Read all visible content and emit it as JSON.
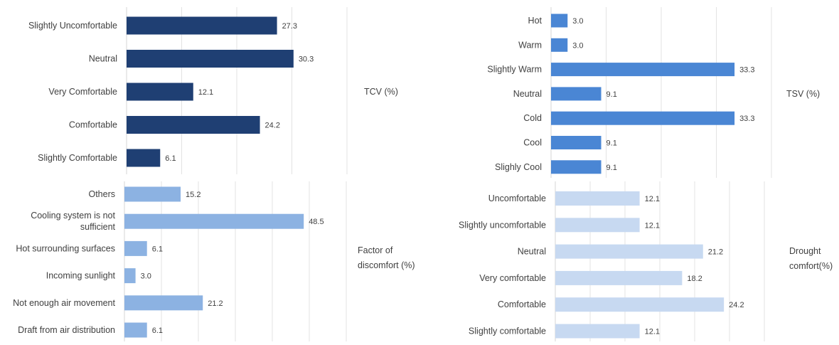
{
  "chart_data": [
    {
      "type": "bar",
      "orientation": "horizontal",
      "side_label": [
        "TCV (%)"
      ],
      "color": "#1f3f73",
      "categories": [
        "Slightly Uncomfortable",
        "Neutral",
        "Very Comfortable",
        "Comfortable",
        "Slightly Comfortable"
      ],
      "values": [
        27.3,
        30.3,
        12.1,
        24.2,
        6.1
      ],
      "value_labels": [
        "27.3",
        "30.3",
        "12.1",
        "24.2",
        "6.1"
      ],
      "xlim": [
        0,
        40
      ],
      "grid": true
    },
    {
      "type": "bar",
      "orientation": "horizontal",
      "side_label": [
        "TSV (%)"
      ],
      "color": "#4a86d4",
      "categories": [
        "Hot",
        "Warm",
        "Slightly Warm",
        "Neutral",
        "Cold",
        "Cool",
        "Slighly Cool"
      ],
      "values": [
        3.0,
        3.0,
        33.3,
        9.1,
        33.3,
        9.1,
        9.1
      ],
      "value_labels": [
        "3.0",
        "3.0",
        "33.3",
        "9.1",
        "33.3",
        "9.1",
        "9.1"
      ],
      "xlim": [
        0,
        40
      ],
      "grid": true
    },
    {
      "type": "bar",
      "orientation": "horizontal",
      "side_label": [
        "Factor of",
        "discomfort  (%)"
      ],
      "color": "#8cb2e2",
      "categories": [
        "Others",
        [
          "Cooling system is not",
          "sufficient"
        ],
        "Hot surrounding surfaces",
        "Incoming sunlight",
        "Not enough air movement",
        "Draft from air distribution"
      ],
      "values": [
        15.2,
        48.5,
        6.1,
        3.0,
        21.2,
        6.1
      ],
      "value_labels": [
        "15.2",
        "48.5",
        "6.1",
        "3.0",
        "21.2",
        "6.1"
      ],
      "xlim": [
        0,
        60
      ],
      "grid": true
    },
    {
      "type": "bar",
      "orientation": "horizontal",
      "side_label": [
        "Drought",
        "comfort(%)"
      ],
      "color": "#c7d9f1",
      "categories": [
        "Uncomfortable",
        "Slightly uncomfortable",
        "Neutral",
        "Very comfortable",
        "Comfortable",
        "Slightly comfortable"
      ],
      "values": [
        12.1,
        12.1,
        21.2,
        18.2,
        24.2,
        12.1
      ],
      "value_labels": [
        "12.1",
        "12.1",
        "21.2",
        "18.2",
        "24.2",
        "12.1"
      ],
      "xlim": [
        0,
        30
      ],
      "grid": true
    }
  ]
}
